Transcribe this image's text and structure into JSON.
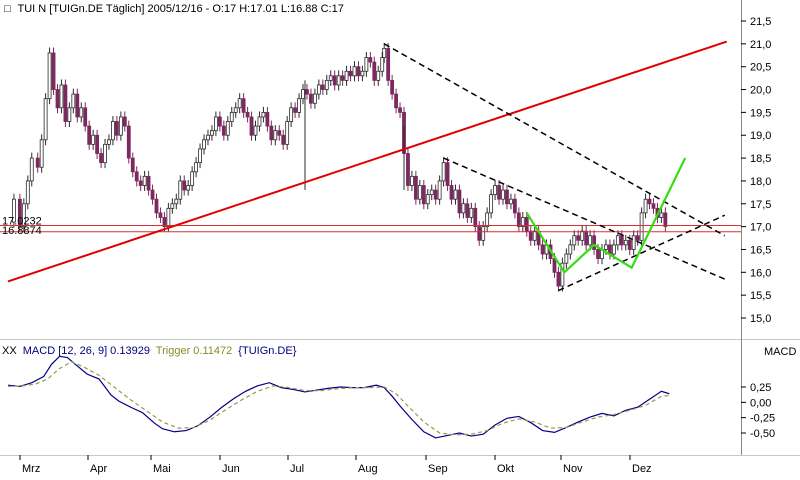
{
  "chart_data": [
    {
      "type": "candlestick",
      "header": {
        "marker": "□",
        "text": "TUI N [TUIGn.DE  Täglich] 2005/12/16 - O:17 H:17.01 L:16.88 C:17"
      },
      "y_ticks": [
        "21,5",
        "21,0",
        "20,5",
        "20,0",
        "19,5",
        "19,0",
        "18,5",
        "18,0",
        "17,5",
        "17,0",
        "16,5",
        "16,0",
        "15,5",
        "15,0"
      ],
      "ylim": [
        14.5,
        21.8
      ],
      "x_ticks": [
        "Mrz",
        "Apr",
        "Mai",
        "Jun",
        "Jul",
        "Aug",
        "Sep",
        "Okt",
        "Nov",
        "Dez"
      ],
      "level_labels": [
        "17.0232",
        "16.8874"
      ],
      "levels": [
        17.0232,
        16.8874
      ],
      "trendlines": {
        "uptrend_red": [
          [
            0,
            15.8
          ],
          [
            363,
            21.05
          ]
        ],
        "upper_down_dashed": [
          [
            190,
            21.0
          ],
          [
            362,
            16.8
          ]
        ],
        "lower_down_dashed": [
          [
            220,
            18.5
          ],
          [
            362,
            15.85
          ]
        ],
        "lower_up_dashed": [
          [
            278,
            15.6
          ],
          [
            362,
            17.25
          ]
        ],
        "projection_green": [
          [
            262,
            17.3
          ],
          [
            281,
            16.0
          ],
          [
            296,
            16.6
          ],
          [
            315,
            16.1
          ],
          [
            342,
            18.5
          ]
        ]
      },
      "price_series": [
        [
          0,
          17.1
        ],
        [
          3,
          17.6
        ],
        [
          6,
          17.0
        ],
        [
          8,
          17.5
        ],
        [
          10,
          18.0
        ],
        [
          12,
          18.5
        ],
        [
          15,
          18.3
        ],
        [
          17,
          18.9
        ],
        [
          19,
          19.8
        ],
        [
          21,
          20.8
        ],
        [
          23,
          20.0
        ],
        [
          25,
          19.6
        ],
        [
          27,
          20.1
        ],
        [
          29,
          19.3
        ],
        [
          31,
          19.6
        ],
        [
          33,
          19.9
        ],
        [
          35,
          19.4
        ],
        [
          37,
          19.6
        ],
        [
          39,
          19.2
        ],
        [
          41,
          18.8
        ],
        [
          43,
          19.0
        ],
        [
          45,
          18.6
        ],
        [
          47,
          18.4
        ],
        [
          49,
          18.8
        ],
        [
          51,
          18.9
        ],
        [
          53,
          19.3
        ],
        [
          55,
          19.0
        ],
        [
          57,
          19.4
        ],
        [
          59,
          19.2
        ],
        [
          61,
          18.5
        ],
        [
          63,
          18.2
        ],
        [
          65,
          18.0
        ],
        [
          67,
          17.9
        ],
        [
          69,
          18.1
        ],
        [
          71,
          17.8
        ],
        [
          73,
          17.6
        ],
        [
          75,
          17.3
        ],
        [
          77,
          17.2
        ],
        [
          79,
          17.0
        ],
        [
          81,
          17.4
        ],
        [
          83,
          17.5
        ],
        [
          85,
          17.6
        ],
        [
          87,
          18.0
        ],
        [
          89,
          17.8
        ],
        [
          91,
          17.9
        ],
        [
          93,
          18.2
        ],
        [
          95,
          18.4
        ],
        [
          97,
          18.7
        ],
        [
          99,
          18.9
        ],
        [
          101,
          19.0
        ],
        [
          103,
          19.1
        ],
        [
          105,
          19.4
        ],
        [
          107,
          19.2
        ],
        [
          109,
          19.0
        ],
        [
          111,
          19.3
        ],
        [
          113,
          19.5
        ],
        [
          115,
          19.6
        ],
        [
          117,
          19.8
        ],
        [
          119,
          19.5
        ],
        [
          121,
          19.4
        ],
        [
          123,
          19.0
        ],
        [
          125,
          19.2
        ],
        [
          127,
          19.4
        ],
        [
          129,
          19.5
        ],
        [
          131,
          19.2
        ],
        [
          133,
          18.9
        ],
        [
          135,
          19.1
        ],
        [
          137,
          19.0
        ],
        [
          139,
          18.8
        ],
        [
          141,
          19.3
        ],
        [
          143,
          19.6
        ],
        [
          145,
          19.5
        ],
        [
          147,
          19.8
        ],
        [
          149,
          20.0
        ],
        [
          151,
          19.9
        ],
        [
          153,
          19.7
        ],
        [
          155,
          19.9
        ],
        [
          157,
          20.1
        ],
        [
          159,
          20.0
        ],
        [
          161,
          20.2
        ],
        [
          163,
          20.3
        ],
        [
          165,
          20.1
        ],
        [
          167,
          20.3
        ],
        [
          169,
          20.2
        ],
        [
          171,
          20.4
        ],
        [
          173,
          20.3
        ],
        [
          175,
          20.5
        ],
        [
          177,
          20.3
        ],
        [
          179,
          20.4
        ],
        [
          181,
          20.7
        ],
        [
          183,
          20.6
        ],
        [
          185,
          20.2
        ],
        [
          187,
          20.4
        ],
        [
          189,
          20.7
        ],
        [
          190,
          20.9
        ],
        [
          192,
          20.2
        ],
        [
          194,
          19.9
        ],
        [
          196,
          19.6
        ],
        [
          198,
          19.5
        ],
        [
          200,
          18.6
        ],
        [
          202,
          17.9
        ],
        [
          204,
          18.1
        ],
        [
          206,
          17.6
        ],
        [
          208,
          17.9
        ],
        [
          210,
          17.5
        ],
        [
          212,
          17.7
        ],
        [
          214,
          17.8
        ],
        [
          216,
          17.6
        ],
        [
          218,
          18.0
        ],
        [
          220,
          18.4
        ],
        [
          222,
          17.9
        ],
        [
          224,
          17.6
        ],
        [
          226,
          17.8
        ],
        [
          228,
          17.3
        ],
        [
          230,
          17.5
        ],
        [
          232,
          17.2
        ],
        [
          234,
          17.4
        ],
        [
          236,
          17.0
        ],
        [
          238,
          16.7
        ],
        [
          240,
          17.0
        ],
        [
          242,
          17.3
        ],
        [
          244,
          17.7
        ],
        [
          246,
          17.9
        ],
        [
          248,
          17.6
        ],
        [
          250,
          17.8
        ],
        [
          252,
          17.5
        ],
        [
          254,
          17.6
        ],
        [
          256,
          17.3
        ],
        [
          258,
          17.0
        ],
        [
          260,
          17.2
        ],
        [
          262,
          16.9
        ],
        [
          264,
          16.7
        ],
        [
          266,
          16.9
        ],
        [
          268,
          16.6
        ],
        [
          270,
          16.4
        ],
        [
          272,
          16.6
        ],
        [
          274,
          16.3
        ],
        [
          276,
          16.0
        ],
        [
          278,
          15.7
        ],
        [
          280,
          16.2
        ],
        [
          282,
          16.4
        ],
        [
          284,
          16.6
        ],
        [
          286,
          16.8
        ],
        [
          288,
          16.7
        ],
        [
          290,
          16.9
        ],
        [
          292,
          16.6
        ],
        [
          294,
          16.8
        ],
        [
          296,
          16.5
        ],
        [
          298,
          16.3
        ],
        [
          300,
          16.5
        ],
        [
          302,
          16.6
        ],
        [
          304,
          16.4
        ],
        [
          306,
          16.6
        ],
        [
          308,
          16.8
        ],
        [
          310,
          16.6
        ],
        [
          312,
          16.7
        ],
        [
          314,
          16.5
        ],
        [
          316,
          16.8
        ],
        [
          318,
          16.7
        ],
        [
          320,
          17.3
        ],
        [
          322,
          17.6
        ],
        [
          324,
          17.5
        ],
        [
          326,
          17.4
        ],
        [
          328,
          17.2
        ],
        [
          330,
          17.3
        ],
        [
          332,
          17.0
        ]
      ],
      "x_range": [
        0,
        350
      ]
    },
    {
      "type": "line",
      "header": {
        "prefix": "XX",
        "macd_label": "MACD [12, 26, 9] 0.13929",
        "trigger_label": "Trigger 0.11472",
        "symbol": "{TUIGn.DE}"
      },
      "panel_label": "MACD",
      "y_ticks": [
        "0,25",
        "0,00",
        "-0,25",
        "-0,50"
      ],
      "ylim": [
        -0.72,
        0.85
      ],
      "series": [
        {
          "values": [
            [
              0,
              0.28
            ],
            [
              6,
              0.26
            ],
            [
              12,
              0.32
            ],
            [
              18,
              0.42
            ],
            [
              22,
              0.62
            ],
            [
              26,
              0.75
            ],
            [
              30,
              0.73
            ],
            [
              34,
              0.62
            ],
            [
              40,
              0.46
            ],
            [
              46,
              0.38
            ],
            [
              52,
              0.12
            ],
            [
              56,
              0.02
            ],
            [
              62,
              -0.08
            ],
            [
              68,
              -0.17
            ],
            [
              74,
              -0.34
            ],
            [
              78,
              -0.43
            ],
            [
              84,
              -0.48
            ],
            [
              90,
              -0.46
            ],
            [
              96,
              -0.38
            ],
            [
              102,
              -0.24
            ],
            [
              108,
              -0.08
            ],
            [
              114,
              0.06
            ],
            [
              120,
              0.18
            ],
            [
              126,
              0.27
            ],
            [
              132,
              0.32
            ],
            [
              138,
              0.24
            ],
            [
              144,
              0.21
            ],
            [
              150,
              0.17
            ],
            [
              156,
              0.2
            ],
            [
              162,
              0.23
            ],
            [
              168,
              0.25
            ],
            [
              174,
              0.24
            ],
            [
              180,
              0.24
            ],
            [
              186,
              0.28
            ],
            [
              190,
              0.24
            ],
            [
              194,
              0.1
            ],
            [
              198,
              -0.06
            ],
            [
              204,
              -0.28
            ],
            [
              210,
              -0.48
            ],
            [
              216,
              -0.58
            ],
            [
              222,
              -0.54
            ],
            [
              228,
              -0.5
            ],
            [
              234,
              -0.55
            ],
            [
              240,
              -0.52
            ],
            [
              246,
              -0.37
            ],
            [
              252,
              -0.26
            ],
            [
              258,
              -0.23
            ],
            [
              264,
              -0.33
            ],
            [
              270,
              -0.46
            ],
            [
              276,
              -0.49
            ],
            [
              282,
              -0.41
            ],
            [
              288,
              -0.32
            ],
            [
              294,
              -0.24
            ],
            [
              300,
              -0.18
            ],
            [
              306,
              -0.22
            ],
            [
              312,
              -0.13
            ],
            [
              318,
              -0.08
            ],
            [
              324,
              0.05
            ],
            [
              330,
              0.18
            ],
            [
              334,
              0.14
            ]
          ]
        },
        {
          "values": [
            [
              0,
              0.26
            ],
            [
              8,
              0.27
            ],
            [
              14,
              0.3
            ],
            [
              20,
              0.38
            ],
            [
              26,
              0.55
            ],
            [
              32,
              0.66
            ],
            [
              38,
              0.58
            ],
            [
              46,
              0.44
            ],
            [
              54,
              0.24
            ],
            [
              62,
              0.04
            ],
            [
              70,
              -0.14
            ],
            [
              78,
              -0.32
            ],
            [
              86,
              -0.42
            ],
            [
              94,
              -0.41
            ],
            [
              102,
              -0.29
            ],
            [
              110,
              -0.12
            ],
            [
              118,
              0.04
            ],
            [
              126,
              0.18
            ],
            [
              134,
              0.27
            ],
            [
              142,
              0.24
            ],
            [
              150,
              0.19
            ],
            [
              158,
              0.19
            ],
            [
              166,
              0.22
            ],
            [
              174,
              0.24
            ],
            [
              182,
              0.24
            ],
            [
              190,
              0.25
            ],
            [
              196,
              0.14
            ],
            [
              202,
              -0.06
            ],
            [
              210,
              -0.32
            ],
            [
              218,
              -0.5
            ],
            [
              226,
              -0.53
            ],
            [
              234,
              -0.52
            ],
            [
              242,
              -0.46
            ],
            [
              250,
              -0.34
            ],
            [
              258,
              -0.27
            ],
            [
              266,
              -0.32
            ],
            [
              274,
              -0.42
            ],
            [
              282,
              -0.41
            ],
            [
              290,
              -0.32
            ],
            [
              298,
              -0.24
            ],
            [
              306,
              -0.2
            ],
            [
              314,
              -0.13
            ],
            [
              322,
              -0.05
            ],
            [
              330,
              0.1
            ],
            [
              334,
              0.11
            ]
          ]
        }
      ]
    }
  ],
  "colors": {
    "background": "#ffffff",
    "panel_separator": "#c8c8c8",
    "candle_up": "#2b2b2b",
    "candle_down": "#7a2a5e",
    "uptrend": "#e00000",
    "level_lines": "#d83030",
    "dashed_lines": "#000000",
    "projection": "#33dd11",
    "macd_line": "#000088",
    "trigger_line": "#999944",
    "trigger_text": "#8a8a2a",
    "header_text": "#000000"
  }
}
